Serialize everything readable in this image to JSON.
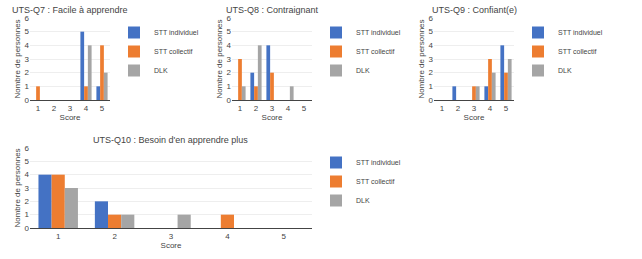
{
  "chart_data": [
    {
      "type": "bar",
      "title": "UTS-Q7 : Facile à apprendre",
      "xlabel": "Score",
      "ylabel": "Nombre de personnes",
      "categories": [
        "1",
        "2",
        "3",
        "4",
        "5"
      ],
      "series": [
        {
          "name": "STT individuel",
          "color": "#4472C4",
          "values": [
            0,
            0,
            0,
            5,
            1
          ]
        },
        {
          "name": "STT collectif",
          "color": "#ED7D31",
          "values": [
            1,
            0,
            0,
            1,
            4
          ]
        },
        {
          "name": "DLK",
          "color": "#A5A5A5",
          "values": [
            0,
            0,
            0,
            4,
            2
          ]
        }
      ],
      "ylim": [
        0,
        6
      ],
      "yticks": [
        0,
        1,
        2,
        3,
        4,
        5,
        6
      ],
      "grid": true,
      "legend": "right"
    },
    {
      "type": "bar",
      "title": "UTS-Q8 : Contraignant",
      "xlabel": "Score",
      "ylabel": "Nombre de personnes",
      "categories": [
        "1",
        "2",
        "3",
        "4",
        "5"
      ],
      "series": [
        {
          "name": "STT individuel",
          "color": "#4472C4",
          "values": [
            0,
            2,
            4,
            0,
            0
          ]
        },
        {
          "name": "STT collectif",
          "color": "#ED7D31",
          "values": [
            3,
            1,
            2,
            0,
            0
          ]
        },
        {
          "name": "DLK",
          "color": "#A5A5A5",
          "values": [
            1,
            4,
            0,
            1,
            0
          ]
        }
      ],
      "ylim": [
        0,
        6
      ],
      "yticks": [
        0,
        1,
        2,
        3,
        4,
        5,
        6
      ],
      "grid": true,
      "legend": "right"
    },
    {
      "type": "bar",
      "title": "UTS-Q9 : Confiant(e)",
      "xlabel": "Score",
      "ylabel": "Nombre de personnes",
      "categories": [
        "1",
        "2",
        "3",
        "4",
        "5"
      ],
      "series": [
        {
          "name": "STT individuel",
          "color": "#4472C4",
          "values": [
            0,
            1,
            0,
            1,
            4
          ]
        },
        {
          "name": "STT collectif",
          "color": "#ED7D31",
          "values": [
            0,
            0,
            1,
            3,
            2
          ]
        },
        {
          "name": "DLK",
          "color": "#A5A5A5",
          "values": [
            0,
            0,
            1,
            2,
            3
          ]
        }
      ],
      "ylim": [
        0,
        6
      ],
      "yticks": [
        0,
        1,
        2,
        3,
        4,
        5,
        6
      ],
      "grid": true,
      "legend": "right"
    },
    {
      "type": "bar",
      "title": "UTS-Q10 : Besoin d'en apprendre plus",
      "xlabel": "Score",
      "ylabel": "Nombre de personnes",
      "categories": [
        "1",
        "2",
        "3",
        "4",
        "5"
      ],
      "series": [
        {
          "name": "STT individuel",
          "color": "#4472C4",
          "values": [
            4,
            2,
            0,
            0,
            0
          ]
        },
        {
          "name": "STT collectif",
          "color": "#ED7D31",
          "values": [
            4,
            1,
            0,
            1,
            0
          ]
        },
        {
          "name": "DLK",
          "color": "#A5A5A5",
          "values": [
            3,
            1,
            1,
            0,
            0
          ]
        }
      ],
      "ylim": [
        0,
        6
      ],
      "yticks": [
        0,
        1,
        2,
        3,
        4,
        5,
        6
      ],
      "grid": true,
      "legend": "right"
    }
  ]
}
